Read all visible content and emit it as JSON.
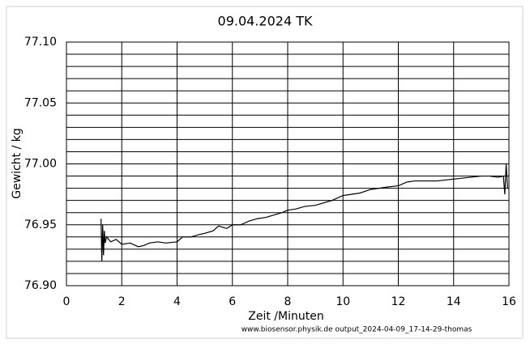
{
  "chart_data": {
    "type": "line",
    "title": "09.04.2024  TK",
    "x_label": "Zeit /Minuten",
    "y_label": "Gewicht / kg",
    "footer": "www.biosensor.physik.de output_2024-04-09_17-14-29-thomas",
    "xlim": [
      0,
      16
    ],
    "xticks": [
      0,
      2,
      4,
      6,
      8,
      10,
      12,
      14,
      16
    ],
    "ylim": [
      76.9,
      77.1
    ],
    "yticks": [
      {
        "value": 76.9,
        "label": "76.90"
      },
      {
        "value": 76.95,
        "label": "76.95"
      },
      {
        "value": 77.0,
        "label": "77.00"
      },
      {
        "value": 77.05,
        "label": "77.05"
      },
      {
        "value": 77.1,
        "label": "77.10"
      }
    ],
    "minor_yticks": [
      76.91,
      76.92,
      76.93,
      76.94,
      76.96,
      76.97,
      76.98,
      76.99,
      77.01,
      77.02,
      77.03,
      77.04,
      77.06,
      77.07,
      77.08,
      77.09
    ],
    "grid": true,
    "series": [
      {
        "name": "Gewicht",
        "color": "#000000",
        "x": [
          1.25,
          1.28,
          1.31,
          1.34,
          1.37,
          1.4,
          1.45,
          1.6,
          1.8,
          2.0,
          2.3,
          2.6,
          2.8,
          3.0,
          3.3,
          3.6,
          4.0,
          4.2,
          4.5,
          4.8,
          5.0,
          5.3,
          5.5,
          5.8,
          6.0,
          6.3,
          6.6,
          6.9,
          7.2,
          7.5,
          7.8,
          8.0,
          8.3,
          8.6,
          9.0,
          9.3,
          9.6,
          10.0,
          10.3,
          10.6,
          11.0,
          11.3,
          11.6,
          12.0,
          12.3,
          12.6,
          13.0,
          13.4,
          13.8,
          14.2,
          14.6,
          15.0,
          15.3,
          15.6,
          15.8,
          15.85,
          15.9,
          15.95
        ],
        "values": [
          76.955,
          76.92,
          76.95,
          76.925,
          76.945,
          76.935,
          76.94,
          76.936,
          76.938,
          76.934,
          76.935,
          76.932,
          76.933,
          76.935,
          76.936,
          76.935,
          76.936,
          76.94,
          76.94,
          76.942,
          76.943,
          76.945,
          76.949,
          76.947,
          76.95,
          76.95,
          76.953,
          76.955,
          76.956,
          76.958,
          76.96,
          76.962,
          76.963,
          76.965,
          76.966,
          76.968,
          76.97,
          76.974,
          76.975,
          76.976,
          76.979,
          76.98,
          76.981,
          76.982,
          76.985,
          76.986,
          76.986,
          76.986,
          76.987,
          76.988,
          76.989,
          76.99,
          76.99,
          76.989,
          76.99,
          76.975,
          77.0,
          76.98
        ]
      }
    ]
  }
}
